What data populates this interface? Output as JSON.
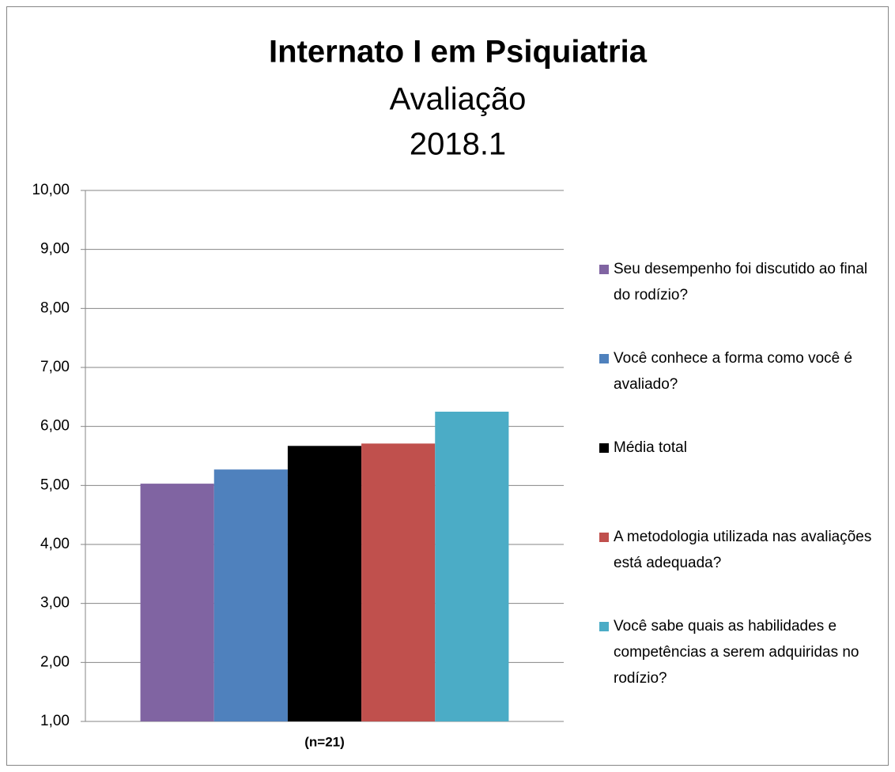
{
  "chart_data": {
    "type": "bar",
    "title": "Internato I em Psiquiatria",
    "subtitle": [
      "Avaliação",
      "2018.1"
    ],
    "categories": [
      "(n=21)"
    ],
    "series": [
      {
        "name": "Seu desempenho foi discutido ao final do rodízio?",
        "color": "#8064a2",
        "values": [
          5.03
        ]
      },
      {
        "name": "Você conhece a forma como você é avaliado?",
        "color": "#4f81bd",
        "values": [
          5.27
        ]
      },
      {
        "name": "Média total",
        "color": "#000000",
        "values": [
          5.67
        ]
      },
      {
        "name": "A metodologia utilizada nas avaliações está adequada?",
        "color": "#c0504d",
        "values": [
          5.71
        ]
      },
      {
        "name": "Você sabe quais as  habilidades e competências a serem adquiridas no rodízio?",
        "color": "#4bacc6",
        "values": [
          6.25
        ]
      }
    ],
    "ylim": [
      1,
      10
    ],
    "yticks": [
      {
        "value": 1,
        "label": "1,00"
      },
      {
        "value": 2,
        "label": "2,00"
      },
      {
        "value": 3,
        "label": "3,00"
      },
      {
        "value": 4,
        "label": "4,00"
      },
      {
        "value": 5,
        "label": "5,00"
      },
      {
        "value": 6,
        "label": "6,00"
      },
      {
        "value": 7,
        "label": "7,00"
      },
      {
        "value": 8,
        "label": "8,00"
      },
      {
        "value": 9,
        "label": "9,00"
      },
      {
        "value": 10,
        "label": "10,00"
      }
    ],
    "grid": true,
    "legend": "right"
  }
}
